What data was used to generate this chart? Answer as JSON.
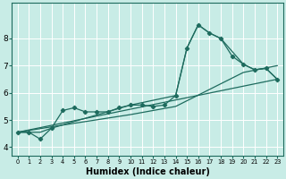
{
  "xlabel": "Humidex (Indice chaleur)",
  "bg_color": "#c8ece6",
  "line_color": "#1e6b5e",
  "grid_color": "#b0ddd6",
  "xlim": [
    -0.5,
    23.5
  ],
  "ylim": [
    3.7,
    9.3
  ],
  "x_ticks": [
    0,
    1,
    2,
    3,
    4,
    5,
    6,
    7,
    8,
    9,
    10,
    11,
    12,
    13,
    14,
    15,
    16,
    17,
    18,
    19,
    20,
    21,
    22,
    23
  ],
  "y_ticks": [
    4,
    5,
    6,
    7,
    8
  ],
  "line1_x": [
    0,
    1,
    2,
    3,
    4,
    5,
    6,
    7,
    8,
    9,
    10,
    11,
    12,
    13,
    14,
    15,
    16,
    17,
    18,
    19,
    20,
    21,
    22,
    23
  ],
  "line1_y": [
    4.55,
    4.55,
    4.3,
    4.7,
    5.35,
    5.45,
    5.3,
    5.3,
    5.3,
    5.45,
    5.55,
    5.55,
    5.5,
    5.55,
    5.9,
    7.65,
    8.5,
    8.2,
    8.0,
    7.35,
    7.05,
    6.85,
    6.9,
    6.5
  ],
  "line2_x": [
    0,
    2,
    3,
    10,
    14,
    15,
    16,
    17,
    18,
    20,
    21,
    22,
    23
  ],
  "line2_y": [
    4.55,
    4.55,
    4.7,
    5.55,
    5.9,
    7.65,
    8.5,
    8.2,
    8.0,
    7.05,
    6.85,
    6.9,
    6.5
  ],
  "line3_x": [
    0,
    3,
    10,
    14,
    20,
    23
  ],
  "line3_y": [
    4.55,
    4.75,
    5.2,
    5.5,
    6.75,
    7.0
  ],
  "line4_x": [
    0,
    23
  ],
  "line4_y": [
    4.55,
    6.5
  ]
}
